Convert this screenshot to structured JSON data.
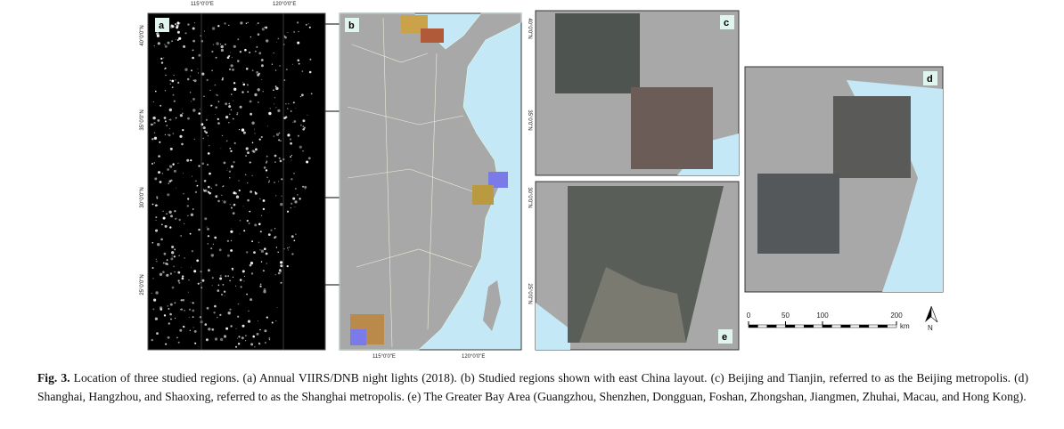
{
  "panels": {
    "a": {
      "label": "a",
      "top_ticks": [
        "115°0'0\"E",
        "120°0'0\"E"
      ],
      "left_ticks": [
        "40°0'0\"N",
        "35°0'0\"N",
        "30°0'0\"N",
        "25°0'0\"N"
      ]
    },
    "b": {
      "label": "b",
      "bottom_ticks": [
        "115°0'0\"E",
        "120°0'0\"E"
      ],
      "right_ticks": [
        "40°0'0\"N",
        "35°0'0\"N",
        "30°0'0\"N",
        "25°0'0\"N"
      ]
    },
    "c": {
      "label": "c"
    },
    "d": {
      "label": "d"
    },
    "e": {
      "label": "e"
    }
  },
  "scale_bar": {
    "ticks": [
      0,
      50,
      100,
      200
    ],
    "unit": "km",
    "north": "N"
  },
  "caption": {
    "label": "Fig. 3.",
    "text": "Location of three studied regions. (a) Annual VIIRS/DNB night lights (2018). (b) Studied regions shown with east China layout. (c) Beijing and Tianjin, referred to as the Beijing metropolis. (d) Shanghai, Hangzhou, and Shaoxing, referred to as the Shanghai metropolis. (e) The Greater Bay Area (Guangzhou, Shenzhen, Dongguan, Foshan, Zhongshan, Jiangmen, Zhuhai, Macau, and Hong Kong)."
  }
}
